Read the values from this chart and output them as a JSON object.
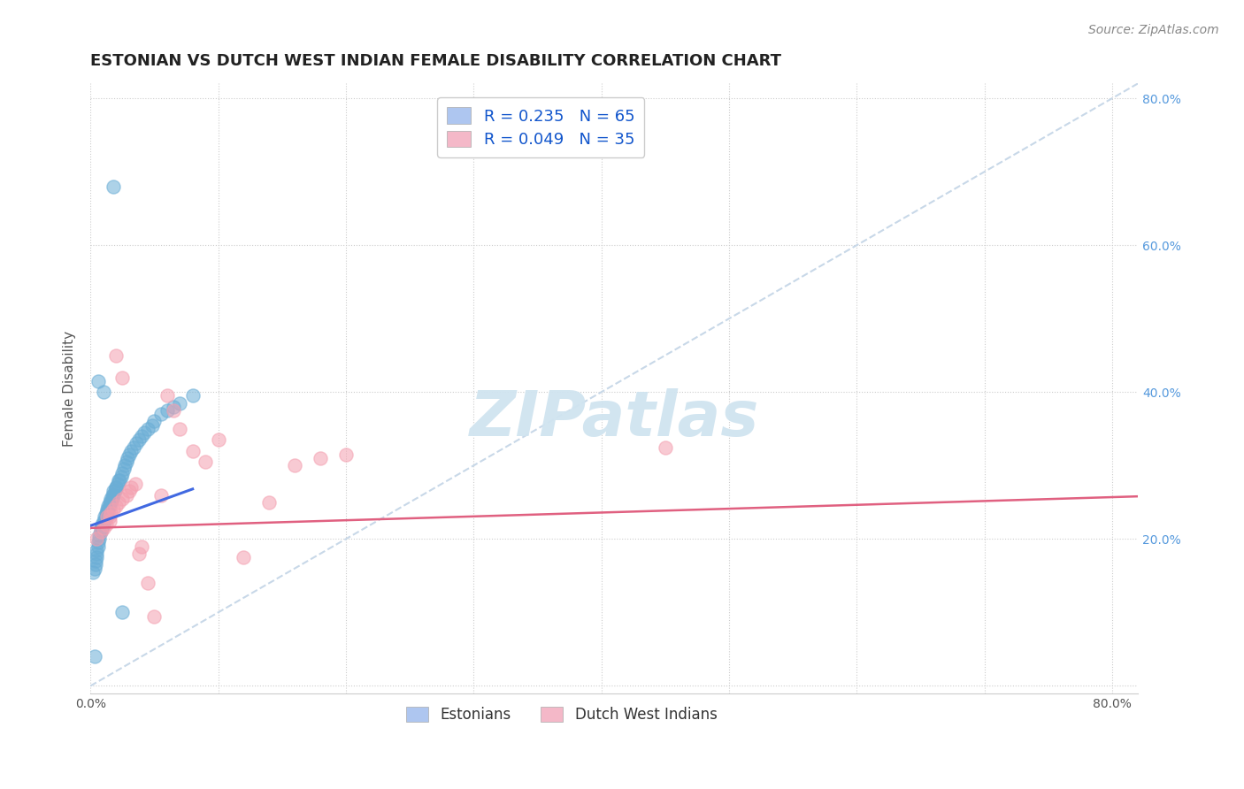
{
  "title": "ESTONIAN VS DUTCH WEST INDIAN FEMALE DISABILITY CORRELATION CHART",
  "source": "Source: ZipAtlas.com",
  "ylabel": "Female Disability",
  "xlim": [
    0.0,
    0.82
  ],
  "ylim": [
    -0.01,
    0.82
  ],
  "legend_label_1": "R = 0.235   N = 65",
  "legend_label_2": "R = 0.049   N = 35",
  "legend_color_1": "#aec6f0",
  "legend_color_2": "#f4b8c8",
  "scatter_color_1": "#6baed6",
  "scatter_color_2": "#f4a0b0",
  "trendline_color_1": "#4169e1",
  "trendline_color_2": "#e06080",
  "diagonal_color": "#c8d8e8",
  "watermark_color": "#d0e4f0",
  "estonians_x": [
    0.002,
    0.003,
    0.004,
    0.004,
    0.005,
    0.005,
    0.005,
    0.006,
    0.006,
    0.007,
    0.007,
    0.008,
    0.008,
    0.009,
    0.009,
    0.01,
    0.01,
    0.011,
    0.011,
    0.012,
    0.012,
    0.013,
    0.013,
    0.014,
    0.014,
    0.015,
    0.015,
    0.016,
    0.016,
    0.017,
    0.017,
    0.018,
    0.018,
    0.019,
    0.02,
    0.02,
    0.021,
    0.022,
    0.023,
    0.024,
    0.025,
    0.026,
    0.027,
    0.028,
    0.029,
    0.03,
    0.032,
    0.034,
    0.036,
    0.038,
    0.04,
    0.042,
    0.045,
    0.048,
    0.05,
    0.055,
    0.06,
    0.065,
    0.07,
    0.08,
    0.018,
    0.01,
    0.006,
    0.003,
    0.025
  ],
  "estonians_y": [
    0.155,
    0.16,
    0.165,
    0.17,
    0.175,
    0.18,
    0.185,
    0.19,
    0.195,
    0.2,
    0.205,
    0.21,
    0.215,
    0.215,
    0.22,
    0.22,
    0.225,
    0.225,
    0.23,
    0.23,
    0.235,
    0.235,
    0.24,
    0.24,
    0.245,
    0.245,
    0.25,
    0.25,
    0.255,
    0.255,
    0.26,
    0.26,
    0.265,
    0.265,
    0.27,
    0.27,
    0.275,
    0.28,
    0.28,
    0.285,
    0.29,
    0.295,
    0.3,
    0.305,
    0.31,
    0.315,
    0.32,
    0.325,
    0.33,
    0.335,
    0.34,
    0.345,
    0.35,
    0.355,
    0.36,
    0.37,
    0.375,
    0.38,
    0.385,
    0.395,
    0.68,
    0.4,
    0.415,
    0.04,
    0.1
  ],
  "dutch_x": [
    0.005,
    0.008,
    0.01,
    0.012,
    0.013,
    0.015,
    0.015,
    0.016,
    0.018,
    0.02,
    0.022,
    0.025,
    0.028,
    0.03,
    0.032,
    0.035,
    0.038,
    0.04,
    0.045,
    0.05,
    0.055,
    0.06,
    0.065,
    0.07,
    0.08,
    0.09,
    0.1,
    0.12,
    0.14,
    0.16,
    0.18,
    0.2,
    0.45,
    0.02,
    0.025
  ],
  "dutch_y": [
    0.2,
    0.21,
    0.215,
    0.22,
    0.23,
    0.225,
    0.23,
    0.235,
    0.24,
    0.245,
    0.25,
    0.255,
    0.26,
    0.265,
    0.27,
    0.275,
    0.18,
    0.19,
    0.14,
    0.095,
    0.26,
    0.395,
    0.375,
    0.35,
    0.32,
    0.305,
    0.335,
    0.175,
    0.25,
    0.3,
    0.31,
    0.315,
    0.325,
    0.45,
    0.42
  ],
  "trendline1_x": [
    0.0,
    0.08
  ],
  "trendline1_y": [
    0.218,
    0.268
  ],
  "trendline2_x": [
    0.0,
    0.82
  ],
  "trendline2_y": [
    0.215,
    0.258
  ]
}
